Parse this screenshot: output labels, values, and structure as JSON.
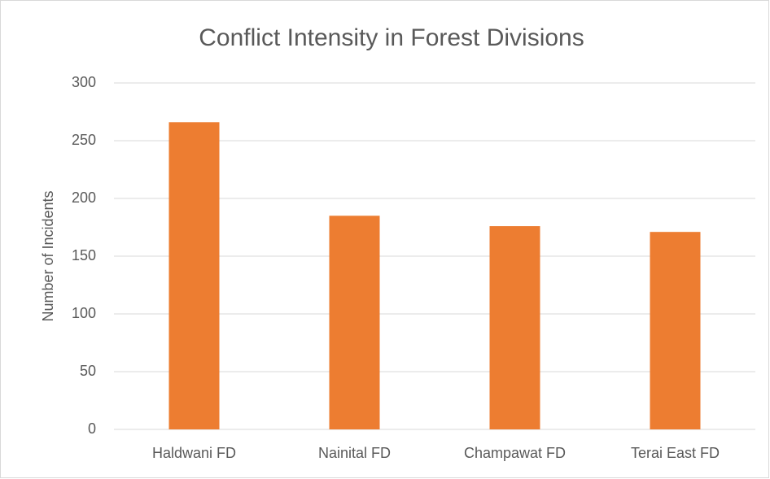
{
  "chart_data": {
    "type": "bar",
    "title": "Conflict Intensity in Forest Divisions",
    "y_label": "Number of Incidents",
    "categories": [
      "Haldwani FD",
      "Nainital FD",
      "Champawat FD",
      "Terai East FD"
    ],
    "values": [
      266,
      185,
      176,
      171
    ],
    "color": "#ed7d31",
    "ylim": [
      0,
      300
    ],
    "yticks": [
      0,
      50,
      100,
      150,
      200,
      250,
      300
    ],
    "grid": true
  }
}
